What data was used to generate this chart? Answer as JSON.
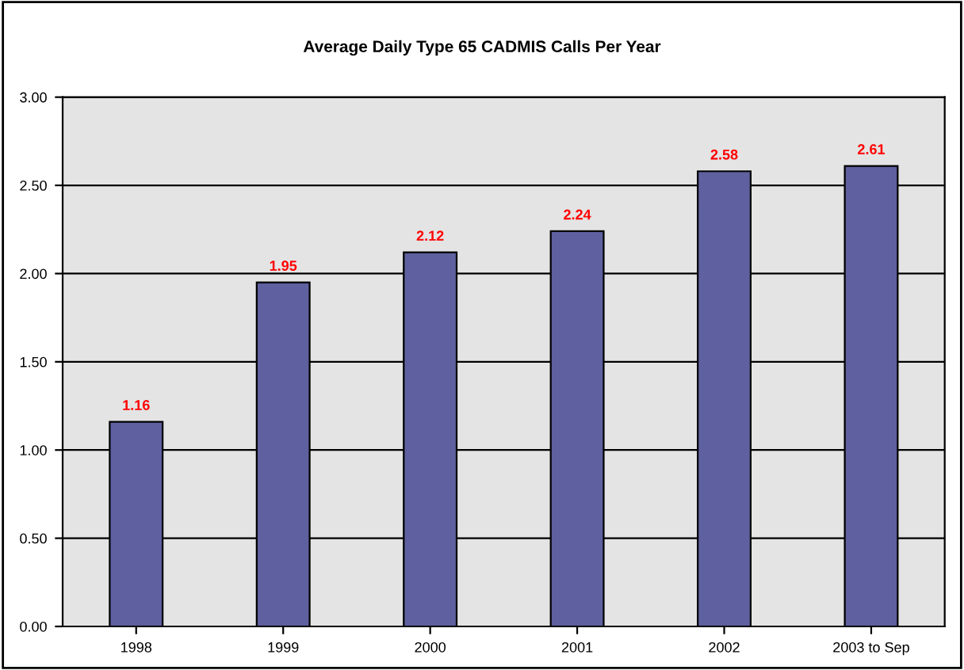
{
  "chart_data": {
    "type": "bar",
    "title": "Average Daily Type 65 CADMIS Calls Per Year",
    "categories": [
      "1998",
      "1999",
      "2000",
      "2001",
      "2002",
      "2003 to Sep"
    ],
    "values": [
      1.16,
      1.95,
      2.12,
      2.24,
      2.58,
      2.61
    ],
    "color": "#5f609f",
    "value_labels": [
      "1.16",
      "1.95",
      "2.12",
      "2.24",
      "2.58",
      "2.61"
    ],
    "ylim": [
      0,
      3
    ],
    "yticks": [
      {
        "value": 0,
        "label": "0.00"
      },
      {
        "value": 0.5,
        "label": "0.50"
      },
      {
        "value": 1,
        "label": "1.00"
      },
      {
        "value": 1.5,
        "label": "1.50"
      },
      {
        "value": 2,
        "label": "2.00"
      },
      {
        "value": 2.5,
        "label": "2.50"
      },
      {
        "value": 3,
        "label": "3.00"
      }
    ],
    "grid": "y",
    "legend": false
  }
}
